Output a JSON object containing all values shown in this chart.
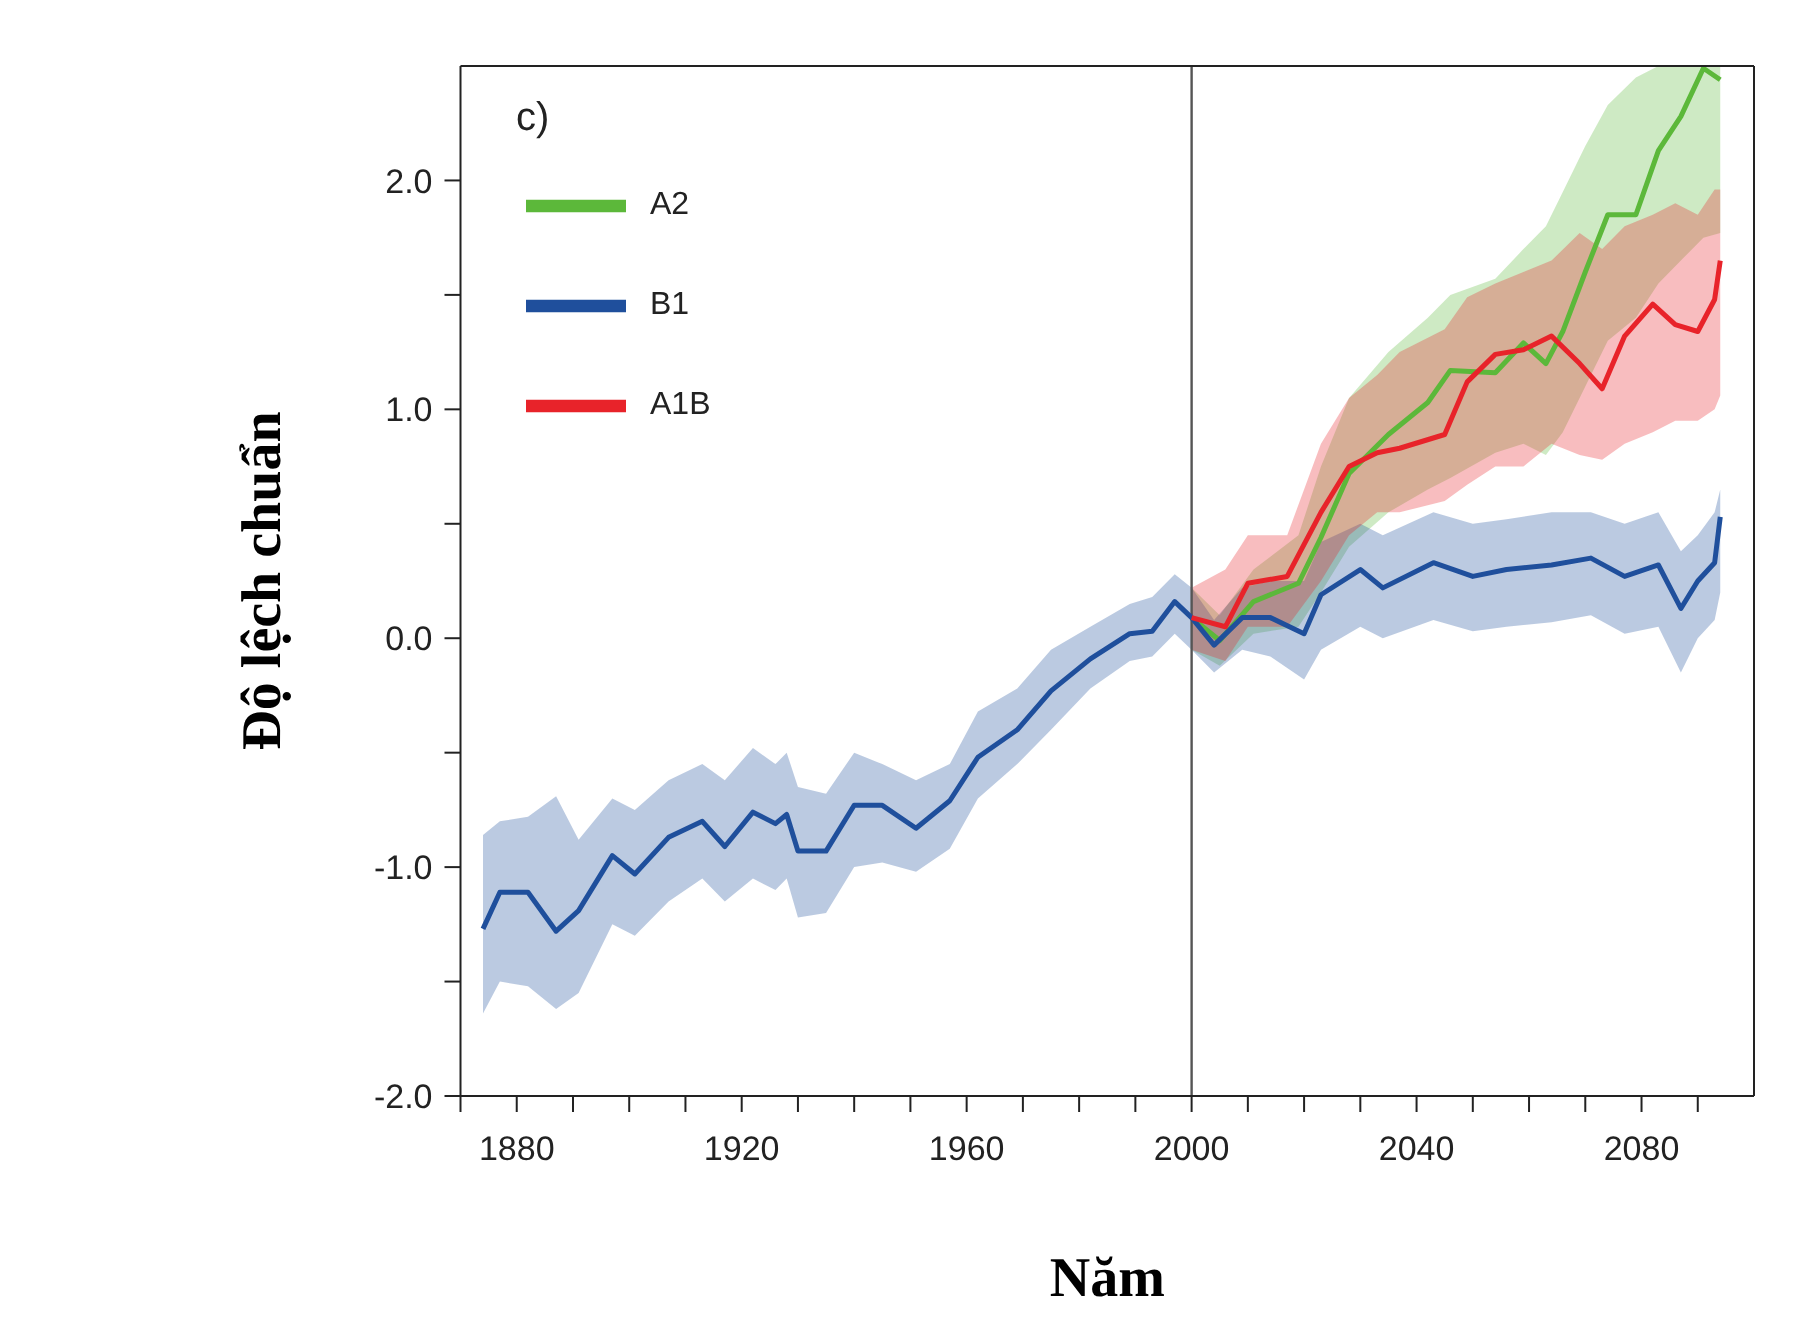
{
  "chart_data": {
    "type": "line",
    "xlabel": "Năm",
    "ylabel": "Độ lệch chuẩn",
    "annotations": [
      "c)"
    ],
    "xlim": [
      1870,
      2100
    ],
    "xticks": [
      {
        "value": 1870,
        "label": null
      },
      1880,
      {
        "value": 1890,
        "label": null
      },
      {
        "value": 1900,
        "label": null
      },
      {
        "value": 1910,
        "label": null
      },
      1920,
      {
        "value": 1930,
        "label": null
      },
      {
        "value": 1940,
        "label": null
      },
      {
        "value": 1950,
        "label": null
      },
      1960,
      {
        "value": 1970,
        "label": null
      },
      {
        "value": 1980,
        "label": null
      },
      {
        "value": 1990,
        "label": null
      },
      2000,
      {
        "value": 2010,
        "label": null
      },
      {
        "value": 2020,
        "label": null
      },
      {
        "value": 2030,
        "label": null
      },
      2040,
      {
        "value": 2050,
        "label": null
      },
      {
        "value": 2060,
        "label": null
      },
      {
        "value": 2070,
        "label": null
      },
      2080,
      {
        "value": 2090,
        "label": null
      }
    ],
    "ylim": [
      -2,
      2.5
    ],
    "yticks": [
      {
        "value": -2,
        "label": "-2.0"
      },
      {
        "value": -1.5,
        "label": null
      },
      {
        "value": -1,
        "label": "-1.0"
      },
      {
        "value": -0.5,
        "label": null
      },
      {
        "value": 0,
        "label": "0.0"
      },
      {
        "value": 0.5,
        "label": null
      },
      {
        "value": 1,
        "label": "1.0"
      },
      {
        "value": 1.5,
        "label": null
      },
      {
        "value": 2,
        "label": "2.0"
      }
    ],
    "ref_lines": [
      {
        "axis": "x",
        "value": 2000,
        "color": "#555555"
      }
    ],
    "legend": "top left",
    "grid": false,
    "marker": "none",
    "line_style": "solid",
    "series": [
      {
        "name": "A2",
        "color": "#5cb83a",
        "x": [
          2000,
          2005,
          2011,
          2019,
          2023,
          2028,
          2035,
          2042,
          2046,
          2054,
          2059,
          2063,
          2066,
          2070,
          2074,
          2079,
          2083,
          2087,
          2091,
          2094
        ],
        "values": [
          0.09,
          -0.01,
          0.16,
          0.24,
          0.44,
          0.72,
          0.89,
          1.03,
          1.17,
          1.16,
          1.29,
          1.2,
          1.34,
          1.6,
          1.85,
          1.85,
          2.13,
          2.28,
          2.49,
          2.44
        ],
        "lower": [
          -0.05,
          -0.12,
          0.02,
          0.05,
          0.2,
          0.4,
          0.55,
          0.65,
          0.7,
          0.81,
          0.85,
          0.8,
          0.9,
          1.1,
          1.3,
          1.4,
          1.55,
          1.65,
          1.75,
          1.77
        ],
        "upper": [
          0.22,
          0.1,
          0.3,
          0.45,
          0.75,
          1.05,
          1.25,
          1.4,
          1.5,
          1.57,
          1.7,
          1.8,
          1.95,
          2.15,
          2.33,
          2.45,
          2.5,
          2.5,
          2.5,
          2.5
        ]
      },
      {
        "name": "B1",
        "color": "#1f4f9c",
        "x": [
          1874,
          1877,
          1882,
          1887,
          1891,
          1897,
          1901,
          1907,
          1913,
          1917,
          1922,
          1926,
          1928,
          1930,
          1935,
          1940,
          1945,
          1951,
          1957,
          1962,
          1969,
          1975,
          1982,
          1989,
          1993,
          1997,
          2000,
          2004,
          2009,
          2014,
          2020,
          2023,
          2030,
          2034,
          2043,
          2050,
          2056,
          2064,
          2071,
          2077,
          2083,
          2087,
          2090,
          2093,
          2094
        ],
        "values": [
          -1.27,
          -1.11,
          -1.11,
          -1.28,
          -1.19,
          -0.95,
          -1.03,
          -0.87,
          -0.8,
          -0.91,
          -0.76,
          -0.81,
          -0.77,
          -0.93,
          -0.93,
          -0.73,
          -0.73,
          -0.83,
          -0.71,
          -0.52,
          -0.4,
          -0.23,
          -0.09,
          0.02,
          0.03,
          0.16,
          0.09,
          -0.03,
          0.09,
          0.09,
          0.02,
          0.19,
          0.3,
          0.22,
          0.33,
          0.27,
          0.3,
          0.32,
          0.35,
          0.27,
          0.32,
          0.13,
          0.25,
          0.33,
          0.53
        ],
        "lower": [
          -1.64,
          -1.5,
          -1.52,
          -1.62,
          -1.55,
          -1.25,
          -1.3,
          -1.15,
          -1.05,
          -1.15,
          -1.05,
          -1.1,
          -1.05,
          -1.22,
          -1.2,
          -1.0,
          -0.98,
          -1.02,
          -0.92,
          -0.7,
          -0.55,
          -0.4,
          -0.22,
          -0.1,
          -0.08,
          0.02,
          -0.05,
          -0.15,
          -0.05,
          -0.08,
          -0.18,
          -0.05,
          0.05,
          0.0,
          0.08,
          0.03,
          0.05,
          0.07,
          0.1,
          0.02,
          0.05,
          -0.15,
          0.0,
          0.08,
          0.2
        ],
        "upper": [
          -0.86,
          -0.8,
          -0.78,
          -0.69,
          -0.88,
          -0.7,
          -0.75,
          -0.62,
          -0.55,
          -0.62,
          -0.48,
          -0.55,
          -0.5,
          -0.65,
          -0.68,
          -0.5,
          -0.55,
          -0.62,
          -0.55,
          -0.32,
          -0.22,
          -0.05,
          0.05,
          0.15,
          0.18,
          0.28,
          0.22,
          0.08,
          0.22,
          0.25,
          0.25,
          0.42,
          0.5,
          0.45,
          0.55,
          0.5,
          0.52,
          0.55,
          0.55,
          0.5,
          0.55,
          0.38,
          0.45,
          0.55,
          0.65
        ]
      },
      {
        "name": "A1B",
        "color": "#e8232a",
        "x": [
          2000,
          2006,
          2010,
          2017,
          2023,
          2028,
          2033,
          2037,
          2045,
          2049,
          2054,
          2059,
          2064,
          2069,
          2073,
          2077,
          2082,
          2086,
          2090,
          2093,
          2094
        ],
        "values": [
          0.09,
          0.05,
          0.24,
          0.27,
          0.55,
          0.75,
          0.81,
          0.83,
          0.89,
          1.12,
          1.24,
          1.26,
          1.32,
          1.2,
          1.09,
          1.32,
          1.46,
          1.37,
          1.34,
          1.48,
          1.65
        ],
        "lower": [
          -0.05,
          -0.1,
          0.05,
          0.05,
          0.25,
          0.45,
          0.55,
          0.55,
          0.6,
          0.67,
          0.75,
          0.75,
          0.85,
          0.8,
          0.78,
          0.85,
          0.9,
          0.95,
          0.95,
          1.0,
          1.06
        ],
        "upper": [
          0.22,
          0.3,
          0.45,
          0.45,
          0.85,
          1.05,
          1.15,
          1.25,
          1.35,
          1.49,
          1.55,
          1.6,
          1.65,
          1.77,
          1.7,
          1.8,
          1.85,
          1.9,
          1.85,
          1.96,
          1.96
        ]
      }
    ]
  }
}
